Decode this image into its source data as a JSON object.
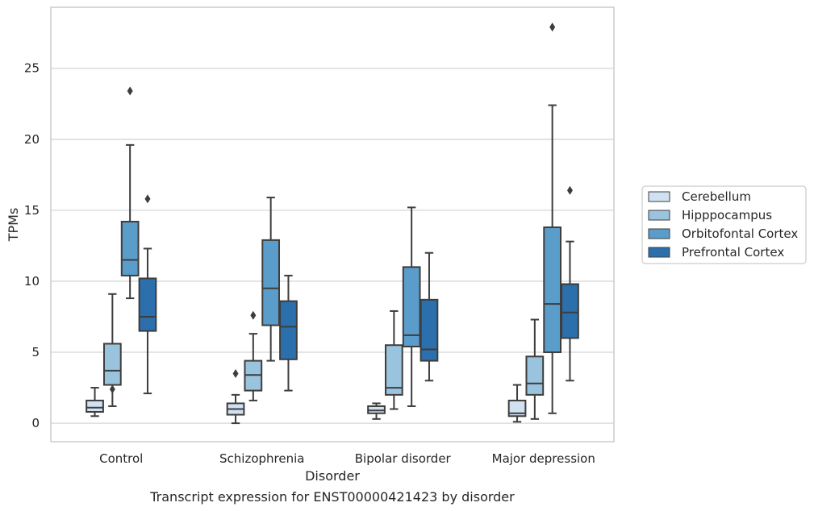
{
  "chart_data": {
    "type": "box",
    "title": "",
    "caption": "Transcript expression for ENST00000421423 by disorder",
    "xlabel": "Disorder",
    "ylabel": "TPMs",
    "ylim": [
      -1.3,
      29.3
    ],
    "yticks": [
      0,
      5,
      10,
      15,
      20,
      25
    ],
    "grid": "horizontal",
    "legend_position": "right",
    "categories": [
      "Control",
      "Schizophrenia",
      "Bipolar disorder",
      "Major depression"
    ],
    "series": [
      {
        "name": "Cerebellum",
        "color": "#d0e1f1",
        "boxes": [
          {
            "whislo": 0.5,
            "q1": 0.8,
            "med": 1.1,
            "q3": 1.6,
            "whishi": 2.5,
            "fliers": []
          },
          {
            "whislo": 0.0,
            "q1": 0.6,
            "med": 1.0,
            "q3": 1.4,
            "whishi": 2.0,
            "fliers": [
              3.5
            ]
          },
          {
            "whislo": 0.3,
            "q1": 0.7,
            "med": 0.9,
            "q3": 1.2,
            "whishi": 1.4,
            "fliers": []
          },
          {
            "whislo": 0.1,
            "q1": 0.5,
            "med": 0.7,
            "q3": 1.6,
            "whishi": 2.7,
            "fliers": []
          }
        ]
      },
      {
        "name": "Hipppocampus",
        "color": "#9ac4de",
        "boxes": [
          {
            "whislo": 1.2,
            "q1": 2.7,
            "med": 3.7,
            "q3": 5.6,
            "whishi": 9.1,
            "fliers": [
              2.4
            ]
          },
          {
            "whislo": 1.6,
            "q1": 2.3,
            "med": 3.4,
            "q3": 4.4,
            "whishi": 6.3,
            "fliers": [
              7.6
            ]
          },
          {
            "whislo": 1.0,
            "q1": 2.0,
            "med": 2.5,
            "q3": 5.5,
            "whishi": 7.9,
            "fliers": []
          },
          {
            "whislo": 0.3,
            "q1": 2.0,
            "med": 2.8,
            "q3": 4.7,
            "whishi": 7.3,
            "fliers": []
          }
        ]
      },
      {
        "name": "Orbitofontal Cortex",
        "color": "#5b9dca",
        "boxes": [
          {
            "whislo": 8.8,
            "q1": 10.4,
            "med": 11.5,
            "q3": 14.2,
            "whishi": 19.6,
            "fliers": [
              23.4
            ]
          },
          {
            "whislo": 4.4,
            "q1": 6.9,
            "med": 9.5,
            "q3": 12.9,
            "whishi": 15.9,
            "fliers": []
          },
          {
            "whislo": 1.2,
            "q1": 5.4,
            "med": 6.2,
            "q3": 11.0,
            "whishi": 15.2,
            "fliers": []
          },
          {
            "whislo": 0.7,
            "q1": 5.0,
            "med": 8.4,
            "q3": 13.8,
            "whishi": 22.4,
            "fliers": [
              27.9
            ]
          }
        ]
      },
      {
        "name": "Prefrontal Cortex",
        "color": "#2c6fad",
        "boxes": [
          {
            "whislo": 2.1,
            "q1": 6.5,
            "med": 7.5,
            "q3": 10.2,
            "whishi": 12.3,
            "fliers": [
              15.8
            ]
          },
          {
            "whislo": 2.3,
            "q1": 4.5,
            "med": 6.8,
            "q3": 8.6,
            "whishi": 10.4,
            "fliers": []
          },
          {
            "whislo": 3.0,
            "q1": 4.4,
            "med": 5.2,
            "q3": 8.7,
            "whishi": 12.0,
            "fliers": []
          },
          {
            "whislo": 3.0,
            "q1": 6.0,
            "med": 7.8,
            "q3": 9.8,
            "whishi": 12.8,
            "fliers": [
              16.4
            ]
          }
        ]
      }
    ]
  }
}
